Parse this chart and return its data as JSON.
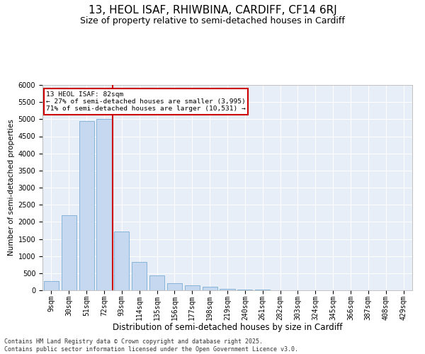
{
  "title": "13, HEOL ISAF, RHIWBINA, CARDIFF, CF14 6RJ",
  "subtitle": "Size of property relative to semi-detached houses in Cardiff",
  "xlabel": "Distribution of semi-detached houses by size in Cardiff",
  "ylabel": "Number of semi-detached properties",
  "categories": [
    "9sqm",
    "30sqm",
    "51sqm",
    "72sqm",
    "93sqm",
    "114sqm",
    "135sqm",
    "156sqm",
    "177sqm",
    "198sqm",
    "219sqm",
    "240sqm",
    "261sqm",
    "282sqm",
    "303sqm",
    "324sqm",
    "345sqm",
    "366sqm",
    "387sqm",
    "408sqm",
    "429sqm"
  ],
  "values": [
    270,
    2200,
    4950,
    5000,
    1720,
    820,
    430,
    215,
    145,
    95,
    50,
    28,
    14,
    9,
    7,
    4,
    3,
    2,
    2,
    1,
    1
  ],
  "bar_color": "#c5d8f0",
  "bar_edge_color": "#7aadd4",
  "vline_color": "#cc0000",
  "vline_pos": 3.5,
  "annotation_text": "13 HEOL ISAF: 82sqm\n← 27% of semi-detached houses are smaller (3,995)\n71% of semi-detached houses are larger (10,531) →",
  "annotation_box_color": "#cc0000",
  "ylim": [
    0,
    6000
  ],
  "yticks": [
    0,
    500,
    1000,
    1500,
    2000,
    2500,
    3000,
    3500,
    4000,
    4500,
    5000,
    5500,
    6000
  ],
  "background_color": "#e8eef8",
  "footer": "Contains HM Land Registry data © Crown copyright and database right 2025.\nContains public sector information licensed under the Open Government Licence v3.0.",
  "title_fontsize": 11,
  "subtitle_fontsize": 9,
  "xlabel_fontsize": 8.5,
  "ylabel_fontsize": 7.5,
  "tick_fontsize": 7,
  "footer_fontsize": 6
}
